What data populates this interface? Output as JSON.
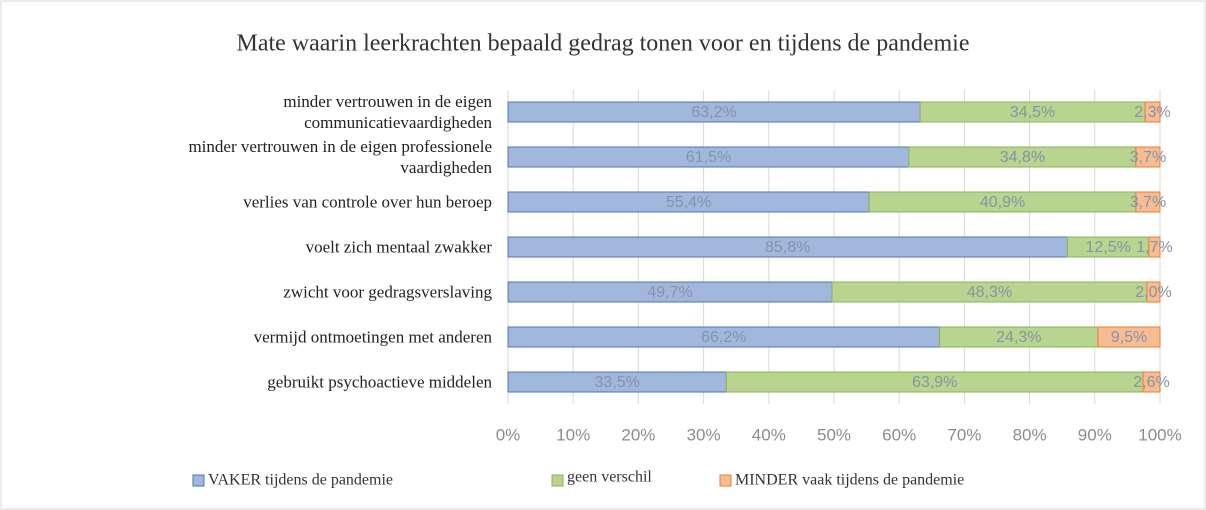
{
  "chart_data": {
    "type": "stacked_bar_horizontal",
    "title": "Mate waarin leerkrachten bepaald gedrag tonen voor en tijdens de pandemie",
    "categories": [
      "minder vertrouwen in de eigen\ncommunicatievaardigheden",
      "minder vertrouwen in de eigen professionele\nvaardigheden",
      "verlies van controle over hun beroep",
      "voelt zich mentaal zwakker",
      "zwicht voor gedragsverslaving",
      "vermijd ontmoetingen met anderen",
      "gebruikt psychoactieve middelen"
    ],
    "series": [
      {
        "name": "VAKER tijdens de pandemie",
        "color": "#a2b7dc",
        "values": [
          63.2,
          61.5,
          55.4,
          85.8,
          49.7,
          66.2,
          33.5
        ],
        "value_labels": [
          "63,2%",
          "61,5%",
          "55,4%",
          "85,8%",
          "49,7%",
          "66,2%",
          "33,5%"
        ]
      },
      {
        "name": "geen verschil",
        "color": "#b8d48f",
        "values": [
          34.5,
          34.8,
          40.9,
          12.5,
          48.3,
          24.3,
          63.9
        ],
        "value_labels": [
          "34,5%",
          "34,8%",
          "40,9%",
          "12,5%",
          "48,3%",
          "24,3%",
          "63,9%"
        ]
      },
      {
        "name": "MINDER vaak tijdens de pandemie",
        "color": "#f8bc94",
        "values": [
          2.3,
          3.7,
          3.7,
          1.7,
          2.0,
          9.5,
          2.6
        ],
        "value_labels": [
          "2,3%",
          "3,7%",
          "3,7%",
          "1,7%",
          "2,0%",
          "9,5%",
          "2,6%"
        ]
      }
    ],
    "xlim": [
      0,
      100
    ],
    "xticks": [
      {
        "value": 0,
        "label": "0%"
      },
      {
        "value": 10,
        "label": "10%"
      },
      {
        "value": 20,
        "label": "20%"
      },
      {
        "value": 30,
        "label": "30%"
      },
      {
        "value": 40,
        "label": "40%"
      },
      {
        "value": 50,
        "label": "50%"
      },
      {
        "value": 60,
        "label": "60%"
      },
      {
        "value": 70,
        "label": "70%"
      },
      {
        "value": 80,
        "label": "80%"
      },
      {
        "value": 90,
        "label": "90%"
      },
      {
        "value": 100,
        "label": "100%"
      }
    ],
    "grid": true,
    "legend": "bottom"
  }
}
